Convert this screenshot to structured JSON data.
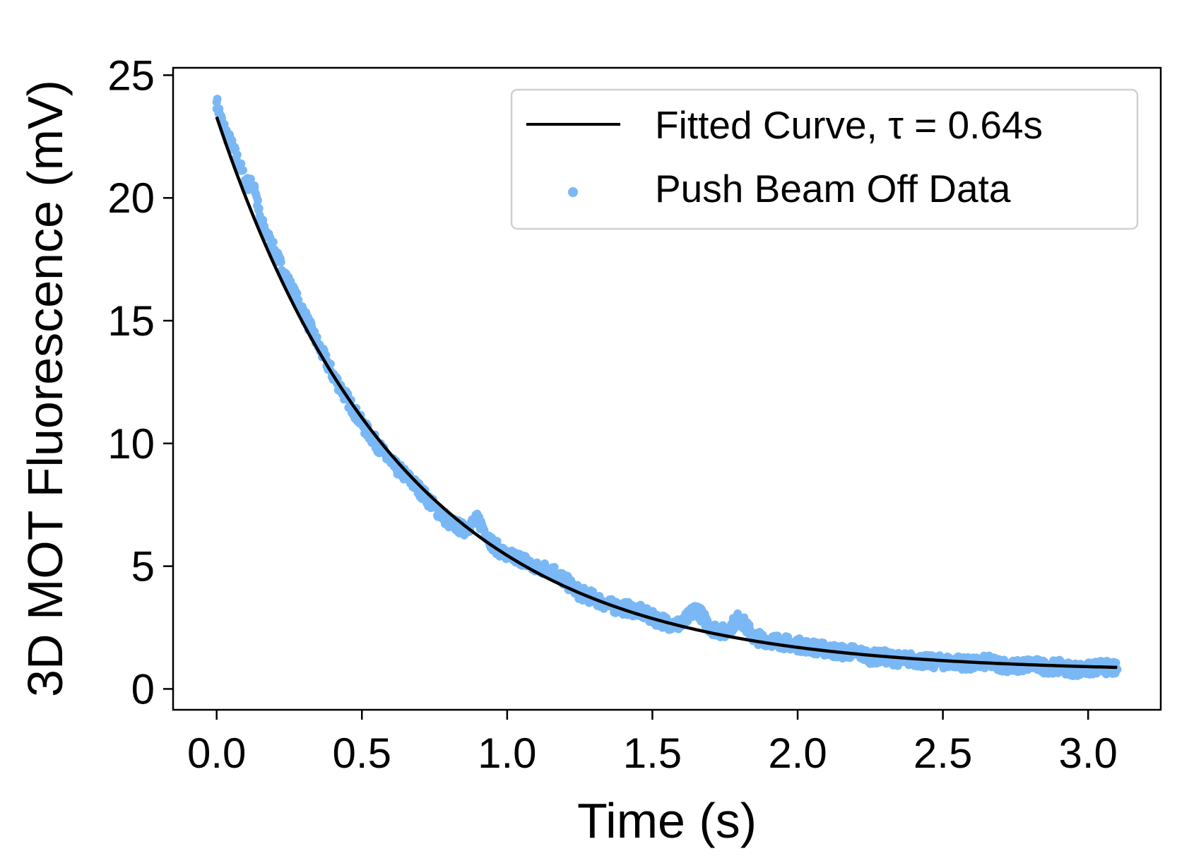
{
  "chart_data": {
    "type": "scatter",
    "xlabel": "Time (s)",
    "ylabel": "3D MOT Fluorescence (mV)",
    "xlim": [
      -0.15,
      3.25
    ],
    "ylim": [
      -0.85,
      25.3
    ],
    "x_ticks": [
      0.0,
      0.5,
      1.0,
      1.5,
      2.0,
      2.5,
      3.0
    ],
    "x_tick_labels": [
      "0.0",
      "0.5",
      "1.0",
      "1.5",
      "2.0",
      "2.5",
      "3.0"
    ],
    "y_ticks": [
      0,
      5,
      10,
      15,
      20,
      25
    ],
    "y_tick_labels": [
      "0",
      "5",
      "10",
      "15",
      "20",
      "25"
    ],
    "grid": false,
    "legend_position": "top-right",
    "series": [
      {
        "name": "Fitted Curve, τ = 0.64s",
        "kind": "line",
        "color": "#000000",
        "model": {
          "amplitude": 22.6,
          "tau": 0.64,
          "offset": 0.7
        },
        "x": [
          0.0,
          0.1,
          0.2,
          0.3,
          0.4,
          0.5,
          0.6,
          0.7,
          0.8,
          0.9,
          1.0,
          1.2,
          1.4,
          1.6,
          1.8,
          2.0,
          2.2,
          2.4,
          2.6,
          2.8,
          3.0,
          3.1
        ],
        "y": [
          23.3,
          19.9,
          17.0,
          14.6,
          12.5,
          10.7,
          9.2,
          7.9,
          6.8,
          5.9,
          5.2,
          3.9,
          3.0,
          2.3,
          1.9,
          1.6,
          1.3,
          1.2,
          1.1,
          1.0,
          0.9,
          0.9
        ]
      },
      {
        "name": "Push Beam Off Data",
        "kind": "scatter",
        "color": "#7ab8f5",
        "x": [
          0.0,
          0.02,
          0.05,
          0.08,
          0.1,
          0.13,
          0.15,
          0.2,
          0.25,
          0.3,
          0.35,
          0.4,
          0.45,
          0.5,
          0.55,
          0.6,
          0.65,
          0.7,
          0.75,
          0.8,
          0.85,
          0.9,
          0.95,
          1.0,
          1.05,
          1.1,
          1.15,
          1.2,
          1.25,
          1.3,
          1.35,
          1.4,
          1.45,
          1.5,
          1.55,
          1.6,
          1.65,
          1.7,
          1.75,
          1.8,
          1.85,
          1.9,
          1.95,
          2.0,
          2.05,
          2.1,
          2.15,
          2.2,
          2.25,
          2.3,
          2.35,
          2.4,
          2.45,
          2.5,
          2.55,
          2.6,
          2.65,
          2.7,
          2.75,
          2.8,
          2.85,
          2.9,
          2.95,
          3.0,
          3.05,
          3.1
        ],
        "y": [
          23.9,
          23.0,
          22.2,
          21.3,
          20.6,
          20.5,
          19.1,
          17.8,
          16.5,
          15.3,
          14.0,
          12.8,
          11.8,
          10.8,
          10.0,
          9.2,
          8.7,
          8.1,
          7.4,
          6.8,
          6.5,
          6.9,
          5.9,
          5.4,
          5.3,
          4.9,
          4.9,
          4.4,
          3.9,
          3.7,
          3.4,
          3.3,
          3.2,
          2.9,
          2.7,
          2.6,
          3.3,
          2.5,
          2.3,
          2.9,
          2.1,
          2.0,
          1.9,
          1.8,
          1.7,
          1.6,
          1.5,
          1.5,
          1.3,
          1.3,
          1.2,
          1.2,
          1.1,
          1.1,
          1.1,
          1.0,
          1.1,
          1.0,
          0.9,
          1.0,
          0.9,
          0.9,
          0.8,
          0.8,
          0.9,
          0.8
        ]
      }
    ]
  }
}
